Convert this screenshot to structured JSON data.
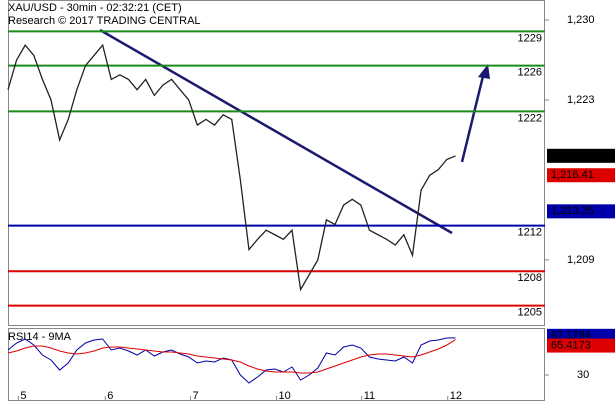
{
  "chart_data": {
    "type": "line",
    "title": "XAU/USD - 30min - 02:32:21 (CET)",
    "subtitle": "Research © 2017 TRADING CENTRAL",
    "x": [
      0,
      1,
      2,
      3,
      4,
      5,
      6,
      7,
      8,
      9,
      10,
      11,
      12,
      13,
      14,
      15,
      16,
      17,
      18,
      19,
      20,
      21,
      22,
      23,
      24,
      25,
      26,
      27,
      28,
      29,
      30,
      31,
      32,
      33,
      34,
      35,
      36,
      37,
      38,
      39,
      40,
      41,
      42,
      43,
      44,
      45,
      46,
      47,
      48,
      49,
      50,
      51,
      52
    ],
    "xlim": [
      0,
      62.4
    ],
    "xticks": [
      {
        "value": 1.2,
        "label": "5"
      },
      {
        "value": 11.3,
        "label": "6"
      },
      {
        "value": 21.2,
        "label": "7"
      },
      {
        "value": 31.2,
        "label": "10"
      },
      {
        "value": 41.1,
        "label": "11"
      },
      {
        "value": 51.1,
        "label": "12"
      }
    ],
    "ylim": [
      1203.3,
      1231.75
    ],
    "yticks": [
      {
        "value": 1230,
        "label": "1,230"
      },
      {
        "value": 1223,
        "label": "1,223"
      },
      {
        "value": 1209,
        "label": "1,209"
      }
    ],
    "series": [
      {
        "name": "XAU/USD",
        "color": "#222222",
        "values": [
          1223.9,
          1226.5,
          1227.8,
          1226.9,
          1224.8,
          1223,
          1219.5,
          1221.3,
          1223.9,
          1226,
          1226.9,
          1227.8,
          1224.8,
          1225.2,
          1224.8,
          1223.9,
          1224.8,
          1223.4,
          1224.3,
          1224.8,
          1223.9,
          1223,
          1220.8,
          1221.3,
          1220.8,
          1221.7,
          1221.3,
          1216,
          1209.9,
          1210.8,
          1211.6,
          1211.2,
          1210.8,
          1211.6,
          1206.4,
          1207.7,
          1209,
          1212.5,
          1212.1,
          1213.8,
          1214.3,
          1213.8,
          1211.6,
          1211.2,
          1210.8,
          1210.3,
          1211.2,
          1209.4,
          1215.1,
          1216.4,
          1216.9,
          1217.8,
          1218.1
        ]
      }
    ],
    "levels": [
      {
        "value": 1229,
        "color": "#1a8a1a"
      },
      {
        "value": 1226,
        "color": "#1a8a1a"
      },
      {
        "value": 1222,
        "color": "#1a8a1a"
      },
      {
        "value": 1212,
        "color": "#0000aa"
      },
      {
        "value": 1208,
        "color": "#dd0000"
      },
      {
        "value": 1205,
        "color": "#dd0000"
      }
    ],
    "price_tags": [
      {
        "value": 1218.11,
        "label": "1,218.11",
        "color": "#000000"
      },
      {
        "value": 1216.41,
        "label": "1,216.41",
        "color": "#dd0000"
      },
      {
        "value": 1213.25,
        "label": "1,213.25",
        "color": "#0000aa"
      }
    ],
    "rsi": {
      "title": "RSI14 - 9MA",
      "ylim": [
        5,
        75
      ],
      "yticks": [
        30
      ],
      "series": [
        {
          "name": "RSI14",
          "color": "#0000aa",
          "values": [
            55,
            62,
            66,
            60,
            50,
            45,
            35,
            42,
            55,
            62,
            65,
            66,
            55,
            57,
            54,
            50,
            55,
            49,
            53,
            55,
            51,
            48,
            42,
            44,
            43,
            47,
            45,
            30,
            22,
            28,
            35,
            36,
            33,
            38,
            25,
            30,
            37,
            52,
            50,
            58,
            60,
            57,
            48,
            46,
            45,
            44,
            48,
            42,
            60,
            64,
            65,
            67,
            67.18
          ]
        },
        {
          "name": "9MA",
          "color": "#dd0000",
          "values": [
            52,
            54,
            57,
            59,
            59,
            57,
            54,
            52,
            51,
            52,
            54,
            57,
            58,
            58,
            57,
            56,
            55,
            54,
            53,
            53,
            52,
            51,
            49,
            48,
            47,
            46,
            45,
            43,
            39,
            36,
            34,
            33,
            33,
            33,
            32,
            32,
            33,
            36,
            39,
            42,
            45,
            48,
            50,
            51,
            51,
            50,
            49,
            48,
            50,
            53,
            56,
            60,
            65.42
          ]
        }
      ],
      "tags": [
        {
          "value": 67.1784,
          "label": "67.1784",
          "color": "#0000aa"
        },
        {
          "value": 65.4173,
          "label": "65.4173",
          "color": "#dd0000"
        }
      ]
    }
  }
}
